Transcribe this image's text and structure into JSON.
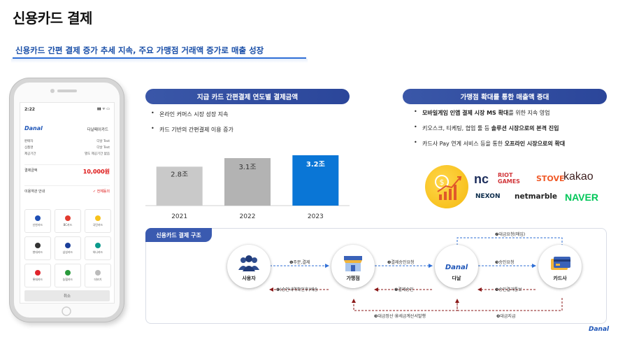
{
  "page": {
    "title": "신용카드 결제",
    "subtitle": "신용카드 간편 결제 증가 추세 지속, 주요 가맹점 거래액 증가로 매출 성장"
  },
  "phone": {
    "time": "2:22",
    "status": "▮▮ ᯤ ▭",
    "logo": "Danal",
    "merchant": "다날페이카드",
    "rows": [
      {
        "label": "판매자",
        "value": "다날 Test"
      },
      {
        "label": "상품명",
        "value": "다날 Test"
      },
      {
        "label": "제공기간",
        "value": "별도 제공기간 없음"
      }
    ],
    "amount_label": "결제금액",
    "amount": "10,000원",
    "terms_label": "이용약관 안내",
    "agree_label": "전체동의",
    "cards": [
      {
        "name": "신한카드",
        "color": "#1f4fb5"
      },
      {
        "name": "BC카드",
        "color": "#e23b2f"
      },
      {
        "name": "국민카드",
        "color": "#f7c21b"
      },
      {
        "name": "현대카드",
        "color": "#333333"
      },
      {
        "name": "삼성카드",
        "color": "#1b3f9a"
      },
      {
        "name": "하나카드",
        "color": "#0b9a8c"
      },
      {
        "name": "롯데카드",
        "color": "#e0242b"
      },
      {
        "name": "농협카드",
        "color": "#2a9a3c"
      },
      {
        "name": "더보기",
        "color": "#bbbbbb"
      }
    ],
    "cancel": "취소"
  },
  "left": {
    "header": "지급 카드 간편결제 연도별 결제금액",
    "bullets": [
      "온라인 커머스 시장 성장 지속",
      "카드 기반의 간편결제 이용 증가"
    ]
  },
  "chart_data": {
    "type": "bar",
    "categories": [
      "2021",
      "2022",
      "2023"
    ],
    "values": [
      2.8,
      3.1,
      3.2
    ],
    "data_labels": [
      "2.8조",
      "3.1조",
      "3.2조"
    ],
    "colors": [
      "#c9c9c9",
      "#b3b3b3",
      "#0a76d6"
    ],
    "title": "",
    "xlabel": "",
    "ylabel": ""
  },
  "right": {
    "header": "가맹점 확대를 통한 매출액 증대",
    "bullets": [
      {
        "pre": "",
        "bold": "모바일게임 인앱 결제 시장 MS 확대",
        "post": "를 위한 지속 영업"
      },
      {
        "pre": "키오스크, 티케팅, 협업 툴 등 ",
        "bold": "솔루션 시장으로의 본격 진입",
        "post": ""
      },
      {
        "pre": "카드사 Pay 연계 서비스 등을 통한 ",
        "bold": "오프라인 시장으로의 확대",
        "post": ""
      }
    ],
    "logos": [
      "nc",
      "RIOT GAMES",
      "STOVE",
      "kakao",
      "NEXON",
      "netmarble",
      "NAVER"
    ],
    "logo_colors": {
      "nc": "#1b2c5a",
      "riot": "#d1363a",
      "stove": "#f05a28",
      "kakao": "#3c1e1e",
      "nexon": "#0a2a4a",
      "netmarble": "#222222",
      "naver": "#03c75a"
    }
  },
  "structure": {
    "header": "신용카드 결제 구조",
    "nodes": [
      "사용자",
      "가맹점",
      "다날",
      "카드사"
    ],
    "flows": {
      "order": "❶주문,결제",
      "approve_req": "❷결제승인요청",
      "approval_req": "❸승인요청",
      "approval_result": "❹승인결과통보",
      "pay_approve": "❺결제승인",
      "notify": "❻(승인내역확인후)배송",
      "settle": "❾대금정산 ⓾세금계산서발행",
      "claim": "❼대금요청(매입)",
      "pay": "❽대금지급"
    }
  },
  "footer_logo": "Danal"
}
